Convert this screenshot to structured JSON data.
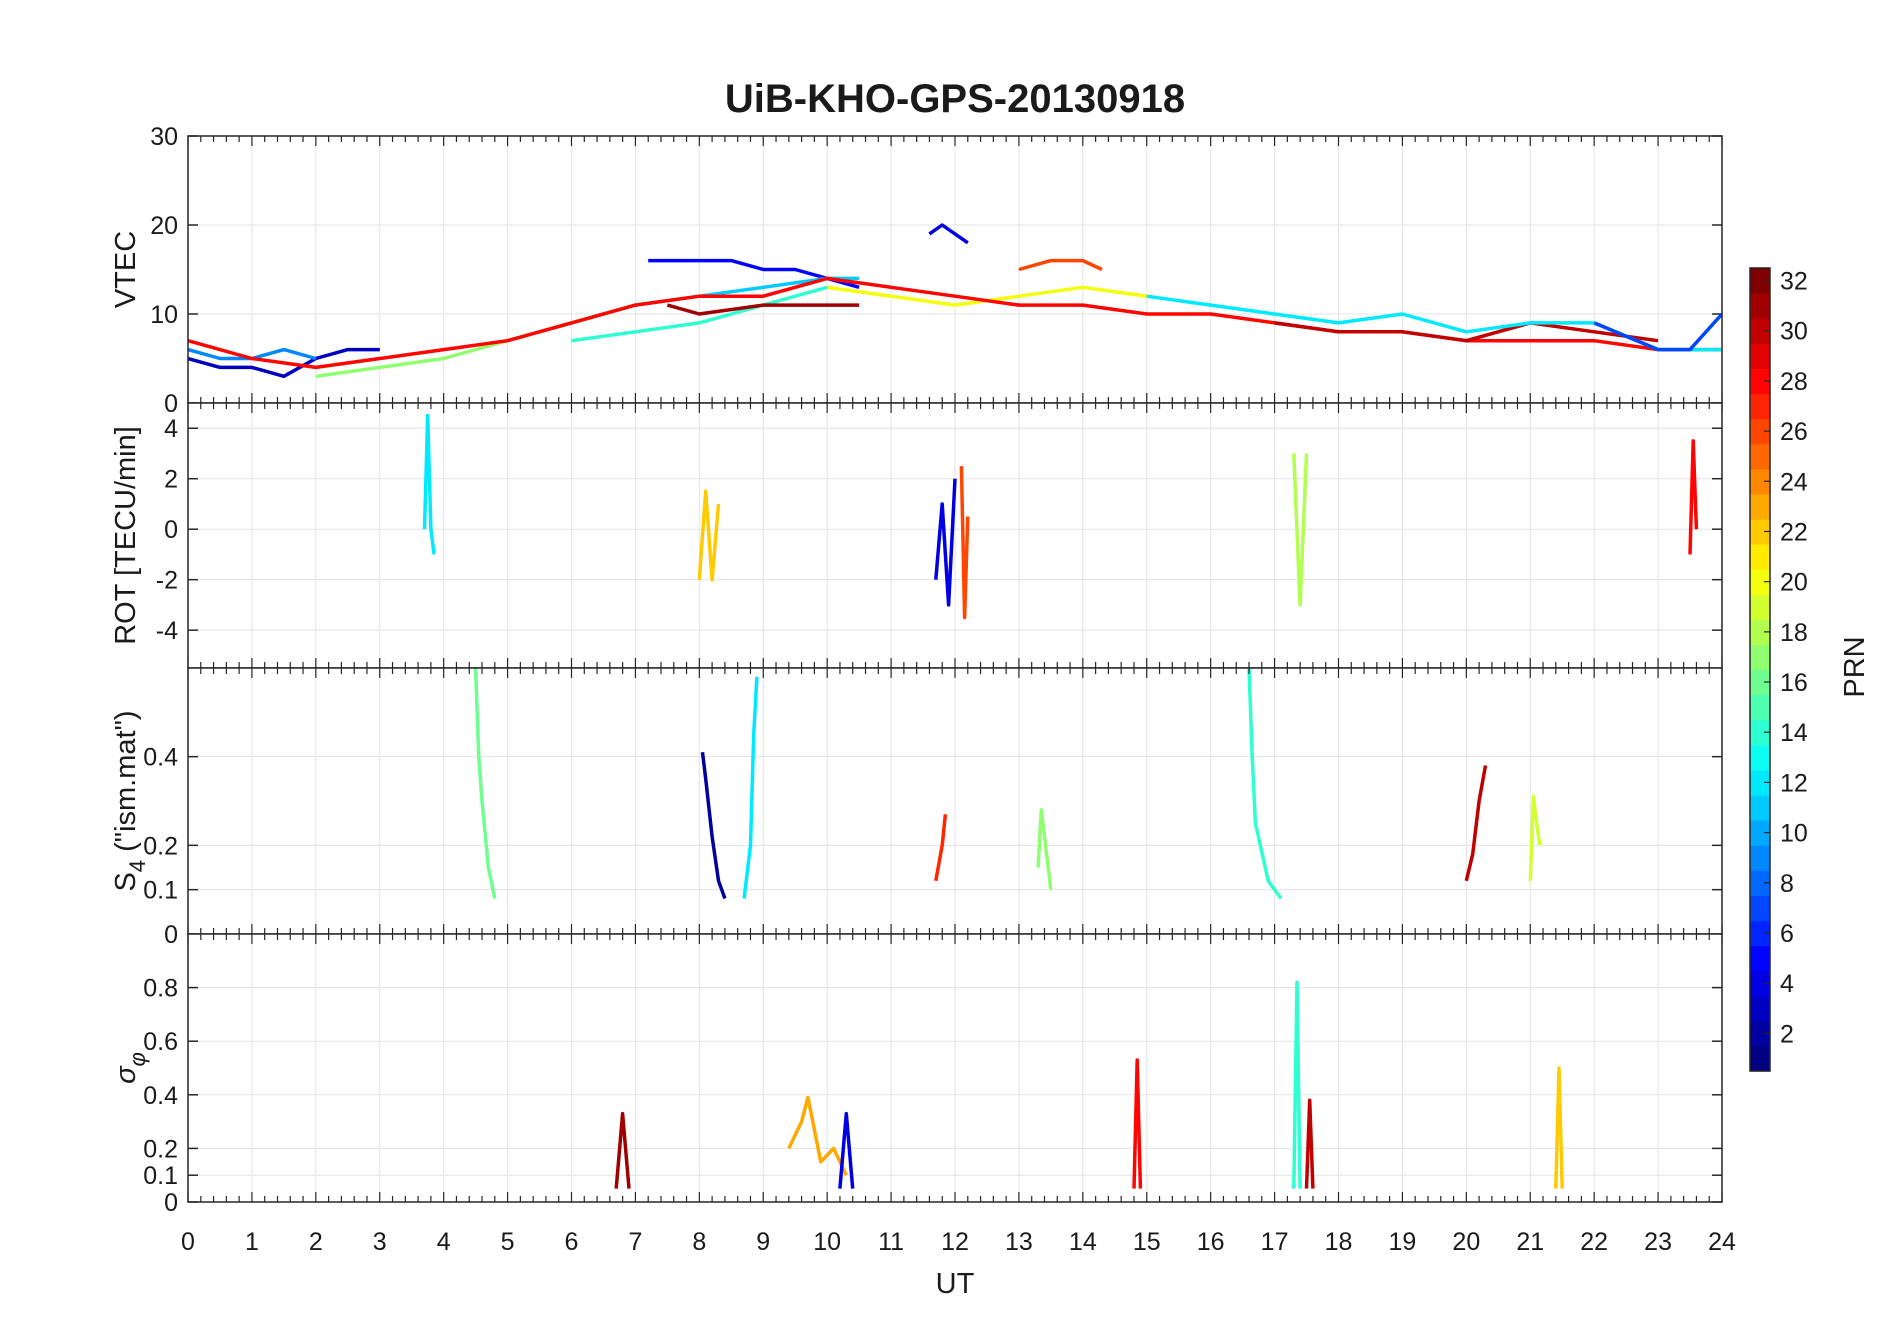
{
  "title": "UiB-KHO-GPS-20130918",
  "x_axis": {
    "label": "UT",
    "range": [
      0,
      24
    ],
    "ticks": [
      0,
      1,
      2,
      3,
      4,
      5,
      6,
      7,
      8,
      9,
      10,
      11,
      12,
      13,
      14,
      15,
      16,
      17,
      18,
      19,
      20,
      21,
      22,
      23,
      24
    ]
  },
  "colorbar": {
    "label": "PRN",
    "range": [
      1,
      32
    ],
    "ticks": [
      2,
      4,
      6,
      8,
      10,
      12,
      14,
      16,
      18,
      20,
      22,
      24,
      26,
      28,
      30,
      32
    ],
    "colormap": "jet"
  },
  "chart_data": [
    {
      "type": "line",
      "id": "vtec",
      "ylabel": "VTEC",
      "ylim": [
        0,
        30
      ],
      "yticks": [
        0,
        10,
        20,
        30
      ],
      "grid": true,
      "series": [
        {
          "prn": 3,
          "x": [
            0,
            0.5,
            1,
            1.5,
            2,
            2.5,
            3
          ],
          "y": [
            5,
            4,
            4,
            3,
            5,
            6,
            6
          ]
        },
        {
          "prn": 5,
          "x": [
            7.2,
            8,
            8.5,
            9,
            9.5,
            10,
            10.5
          ],
          "y": [
            16,
            16,
            16,
            15,
            15,
            14,
            13
          ]
        },
        {
          "prn": 4,
          "x": [
            11.6,
            11.8,
            12,
            12.2
          ],
          "y": [
            19,
            20,
            19,
            18
          ]
        },
        {
          "prn": 9,
          "x": [
            0,
            0.5,
            1,
            1.5,
            2
          ],
          "y": [
            6,
            5,
            5,
            6,
            5
          ]
        },
        {
          "prn": 11,
          "x": [
            5.5,
            6,
            7,
            8,
            9,
            10,
            10.5
          ],
          "y": [
            8,
            9,
            11,
            12,
            13,
            14,
            14
          ]
        },
        {
          "prn": 14,
          "x": [
            6,
            7,
            8,
            9,
            10
          ],
          "y": [
            7,
            8,
            9,
            11,
            13
          ]
        },
        {
          "prn": 17,
          "x": [
            2,
            3,
            4,
            5,
            6,
            7
          ],
          "y": [
            3,
            4,
            5,
            7,
            9,
            11
          ]
        },
        {
          "prn": 20,
          "x": [
            10,
            11,
            12,
            13,
            14,
            15
          ],
          "y": [
            13,
            12,
            11,
            12,
            13,
            12
          ]
        },
        {
          "prn": 26,
          "x": [
            13,
            13.5,
            14,
            14.3
          ],
          "y": [
            15,
            16,
            16,
            15
          ]
        },
        {
          "prn": 28,
          "x": [
            0,
            1,
            2,
            3,
            4,
            5,
            6,
            7,
            8,
            9,
            10,
            11,
            12,
            13,
            14,
            15,
            16,
            17,
            18,
            19,
            20,
            21,
            22,
            23,
            24
          ],
          "y": [
            7,
            5,
            4,
            5,
            6,
            7,
            9,
            11,
            12,
            12,
            14,
            13,
            12,
            11,
            11,
            10,
            10,
            9,
            8,
            8,
            7,
            7,
            7,
            6,
            6
          ]
        },
        {
          "prn": 31,
          "x": [
            7.5,
            8,
            9,
            10,
            10.5
          ],
          "y": [
            11,
            10,
            11,
            11,
            11
          ]
        },
        {
          "prn": 30,
          "x": [
            17,
            18,
            19,
            20,
            21,
            22,
            23
          ],
          "y": [
            9,
            8,
            8,
            7,
            9,
            8,
            7
          ]
        },
        {
          "prn": 12,
          "x": [
            15,
            16,
            17,
            18,
            19,
            20,
            21,
            22,
            23,
            24
          ],
          "y": [
            12,
            11,
            10,
            9,
            10,
            8,
            9,
            9,
            6,
            6
          ]
        },
        {
          "prn": 7,
          "x": [
            22,
            23,
            23.5,
            24
          ],
          "y": [
            9,
            6,
            6,
            10
          ]
        }
      ]
    },
    {
      "type": "line",
      "id": "rot",
      "ylabel": "ROT [TECU/min]",
      "ylim": [
        -5.5,
        5
      ],
      "yticks": [
        -4,
        -2,
        0,
        2,
        4
      ],
      "grid": true,
      "series": [
        {
          "prn": 12,
          "x": [
            3.7,
            3.75,
            3.8,
            3.85
          ],
          "y": [
            0,
            4.5,
            0,
            -1
          ]
        },
        {
          "prn": 4,
          "x": [
            11.7,
            11.8,
            11.9,
            12
          ],
          "y": [
            -2,
            1,
            -3,
            2
          ]
        },
        {
          "prn": 26,
          "x": [
            12.1,
            12.15,
            12.2
          ],
          "y": [
            2.5,
            -3.5,
            0.5
          ]
        },
        {
          "prn": 18,
          "x": [
            17.3,
            17.4,
            17.5
          ],
          "y": [
            3,
            -3,
            3
          ]
        },
        {
          "prn": 28,
          "x": [
            23.5,
            23.55,
            23.6
          ],
          "y": [
            -1,
            3.5,
            0
          ]
        },
        {
          "prn": 22,
          "x": [
            8,
            8.1,
            8.2,
            8.3
          ],
          "y": [
            -2,
            1.5,
            -2,
            1
          ]
        }
      ]
    },
    {
      "type": "line",
      "id": "s4",
      "ylabel": "S4 (\"ism.mat\")",
      "ylabel_main": "S",
      "ylabel_sub": "4",
      "ylabel_rest": " (\"ism.mat\")",
      "ylim": [
        0,
        0.6
      ],
      "yticks": [
        0,
        0.1,
        0.2,
        0.4
      ],
      "ytick_labels": [
        "0",
        "0.1",
        "0.2",
        "0.4"
      ],
      "grid": true,
      "series": [
        {
          "prn": 16,
          "x": [
            4.5,
            4.55,
            4.6,
            4.7,
            4.8
          ],
          "y": [
            0.6,
            0.4,
            0.3,
            0.15,
            0.08
          ]
        },
        {
          "prn": 2,
          "x": [
            8.05,
            8.1,
            8.2,
            8.3,
            8.4
          ],
          "y": [
            0.41,
            0.35,
            0.22,
            0.12,
            0.08
          ]
        },
        {
          "prn": 12,
          "x": [
            8.7,
            8.8,
            8.85,
            8.9
          ],
          "y": [
            0.08,
            0.2,
            0.45,
            0.58
          ]
        },
        {
          "prn": 27,
          "x": [
            11.7,
            11.8,
            11.85
          ],
          "y": [
            0.12,
            0.2,
            0.27
          ]
        },
        {
          "prn": 17,
          "x": [
            13.3,
            13.35,
            13.4,
            13.5
          ],
          "y": [
            0.15,
            0.28,
            0.22,
            0.1
          ]
        },
        {
          "prn": 14,
          "x": [
            16.6,
            16.65,
            16.7,
            16.9,
            17.1
          ],
          "y": [
            0.6,
            0.4,
            0.25,
            0.12,
            0.08
          ]
        },
        {
          "prn": 30,
          "x": [
            20.0,
            20.1,
            20.2,
            20.3
          ],
          "y": [
            0.12,
            0.18,
            0.3,
            0.38
          ]
        },
        {
          "prn": 19,
          "x": [
            21.0,
            21.05,
            21.1,
            21.15
          ],
          "y": [
            0.12,
            0.31,
            0.25,
            0.2
          ]
        }
      ]
    },
    {
      "type": "line",
      "id": "sigma_phi",
      "ylabel": "σφ",
      "ylabel_main": "σ",
      "ylabel_sub": "φ",
      "ylim": [
        0,
        1
      ],
      "yticks": [
        0,
        0.1,
        0.2,
        0.4,
        0.6,
        0.8
      ],
      "ytick_labels": [
        "0",
        "0.1",
        "0.2",
        "0.4",
        "0.6",
        "0.8"
      ],
      "grid": true,
      "series": [
        {
          "prn": 31,
          "x": [
            6.7,
            6.8,
            6.9
          ],
          "y": [
            0.05,
            0.33,
            0.05
          ]
        },
        {
          "prn": 23,
          "x": [
            9.4,
            9.6,
            9.7,
            9.9,
            10.1,
            10.3
          ],
          "y": [
            0.2,
            0.3,
            0.39,
            0.15,
            0.2,
            0.1
          ]
        },
        {
          "prn": 4,
          "x": [
            10.2,
            10.3,
            10.4
          ],
          "y": [
            0.05,
            0.33,
            0.05
          ]
        },
        {
          "prn": 28,
          "x": [
            14.8,
            14.85,
            14.9
          ],
          "y": [
            0.05,
            0.53,
            0.05
          ]
        },
        {
          "prn": 14,
          "x": [
            17.3,
            17.35,
            17.4
          ],
          "y": [
            0.05,
            0.82,
            0.05
          ]
        },
        {
          "prn": 30,
          "x": [
            17.5,
            17.55,
            17.6
          ],
          "y": [
            0.05,
            0.38,
            0.05
          ]
        },
        {
          "prn": 22,
          "x": [
            21.4,
            21.45,
            21.5
          ],
          "y": [
            0.05,
            0.5,
            0.05
          ]
        }
      ]
    }
  ]
}
